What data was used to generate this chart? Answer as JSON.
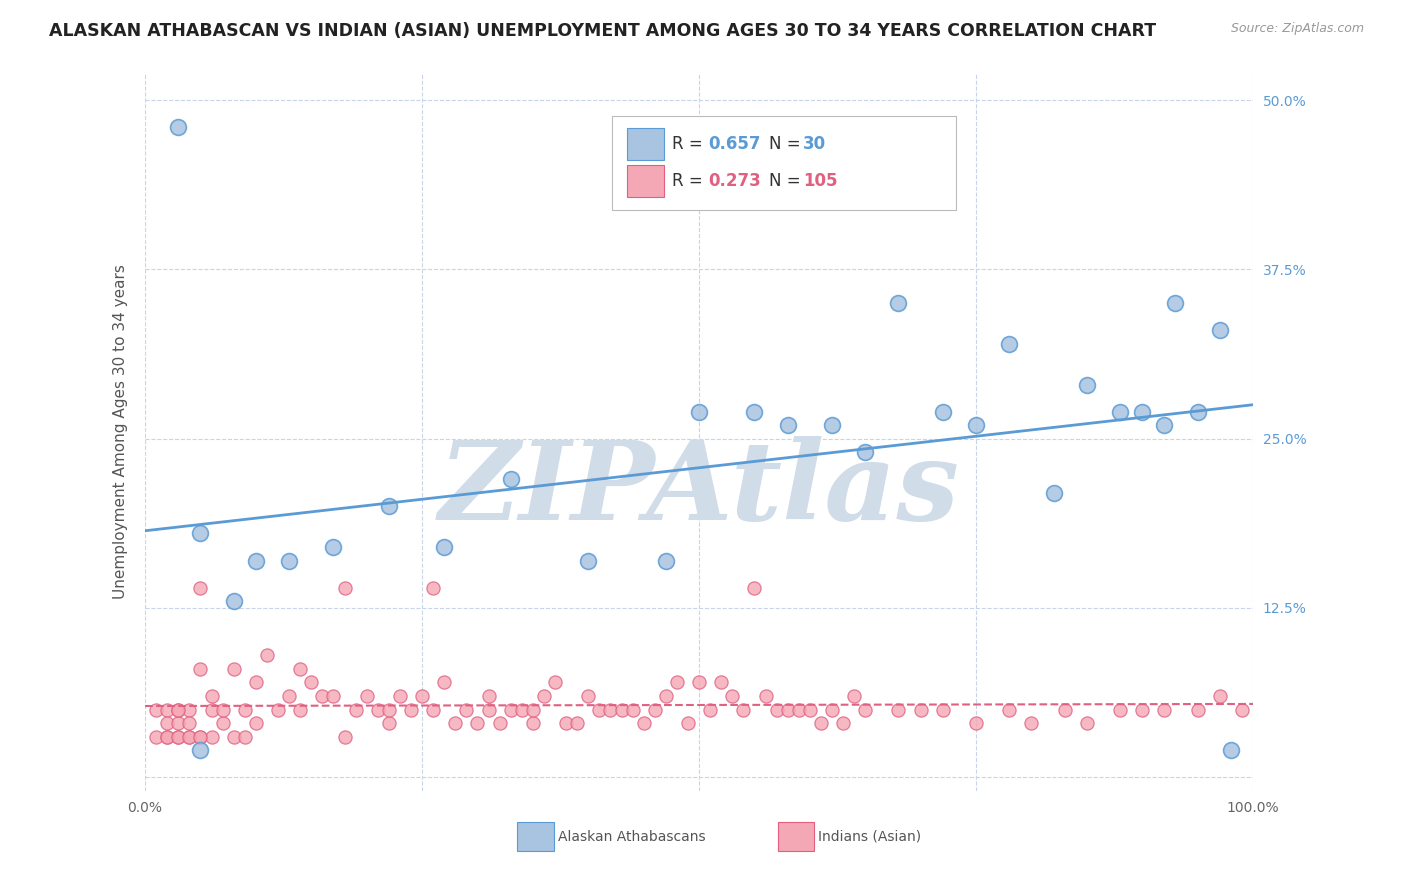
{
  "title": "ALASKAN ATHABASCAN VS INDIAN (ASIAN) UNEMPLOYMENT AMONG AGES 30 TO 34 YEARS CORRELATION CHART",
  "source": "Source: ZipAtlas.com",
  "ylabel": "Unemployment Among Ages 30 to 34 years",
  "xlim": [
    0,
    100
  ],
  "ylim": [
    -1,
    52
  ],
  "ytick_vals": [
    0,
    12.5,
    25,
    37.5,
    50
  ],
  "ytick_labels": [
    "",
    "12.5%",
    "25.0%",
    "37.5%",
    "50.0%"
  ],
  "xtick_vals": [
    0,
    25,
    50,
    75,
    100
  ],
  "xtick_labels": [
    "0.0%",
    "",
    "",
    "",
    "100.0%"
  ],
  "blue_R": 0.657,
  "blue_N": 30,
  "pink_R": 0.273,
  "pink_N": 105,
  "blue_fill": "#a8c4e0",
  "blue_edge": "#5b9bd5",
  "pink_fill": "#f4a7b4",
  "pink_edge": "#e06080",
  "blue_line": "#5b9bd5",
  "pink_line": "#e06080",
  "grid_color": "#c8d4e8",
  "bg_color": "#ffffff",
  "watermark": "ZIPAtlas",
  "watermark_color": "#d0dce8",
  "legend_label_blue": "Alaskan Athabascans",
  "legend_label_pink": "Indians (Asian)",
  "blue_x": [
    3,
    5,
    8,
    10,
    13,
    17,
    22,
    27,
    33,
    40,
    47,
    50,
    55,
    58,
    62,
    65,
    68,
    72,
    75,
    78,
    82,
    85,
    88,
    90,
    92,
    93,
    95,
    97,
    98,
    5
  ],
  "blue_y": [
    48,
    18,
    13,
    16,
    16,
    17,
    20,
    17,
    22,
    16,
    16,
    27,
    27,
    26,
    26,
    24,
    35,
    27,
    26,
    32,
    21,
    29,
    27,
    27,
    26,
    35,
    27,
    33,
    2,
    2
  ],
  "pink_x": [
    1,
    1,
    2,
    2,
    2,
    3,
    3,
    3,
    4,
    4,
    4,
    5,
    5,
    5,
    6,
    6,
    6,
    7,
    7,
    8,
    8,
    9,
    9,
    10,
    10,
    11,
    12,
    13,
    14,
    14,
    15,
    16,
    17,
    18,
    18,
    19,
    20,
    21,
    22,
    22,
    23,
    24,
    25,
    26,
    26,
    27,
    28,
    29,
    30,
    31,
    31,
    32,
    33,
    34,
    35,
    35,
    36,
    37,
    38,
    39,
    40,
    41,
    42,
    43,
    44,
    45,
    46,
    47,
    48,
    49,
    50,
    51,
    52,
    53,
    54,
    55,
    56,
    57,
    58,
    59,
    60,
    61,
    62,
    63,
    64,
    65,
    68,
    70,
    72,
    75,
    78,
    80,
    83,
    85,
    88,
    90,
    92,
    95,
    97,
    99,
    2,
    3,
    3,
    4,
    5
  ],
  "pink_y": [
    3,
    5,
    3,
    5,
    4,
    3,
    4,
    5,
    3,
    5,
    4,
    14,
    3,
    8,
    3,
    5,
    6,
    4,
    5,
    3,
    8,
    3,
    5,
    7,
    4,
    9,
    5,
    6,
    5,
    8,
    7,
    6,
    6,
    3,
    14,
    5,
    6,
    5,
    4,
    5,
    6,
    5,
    6,
    5,
    14,
    7,
    4,
    5,
    4,
    5,
    6,
    4,
    5,
    5,
    4,
    5,
    6,
    7,
    4,
    4,
    6,
    5,
    5,
    5,
    5,
    4,
    5,
    6,
    7,
    4,
    7,
    5,
    7,
    6,
    5,
    14,
    6,
    5,
    5,
    5,
    5,
    4,
    5,
    4,
    6,
    5,
    5,
    5,
    5,
    4,
    5,
    4,
    5,
    4,
    5,
    5,
    5,
    5,
    6,
    5,
    3,
    3,
    5,
    3,
    3
  ]
}
